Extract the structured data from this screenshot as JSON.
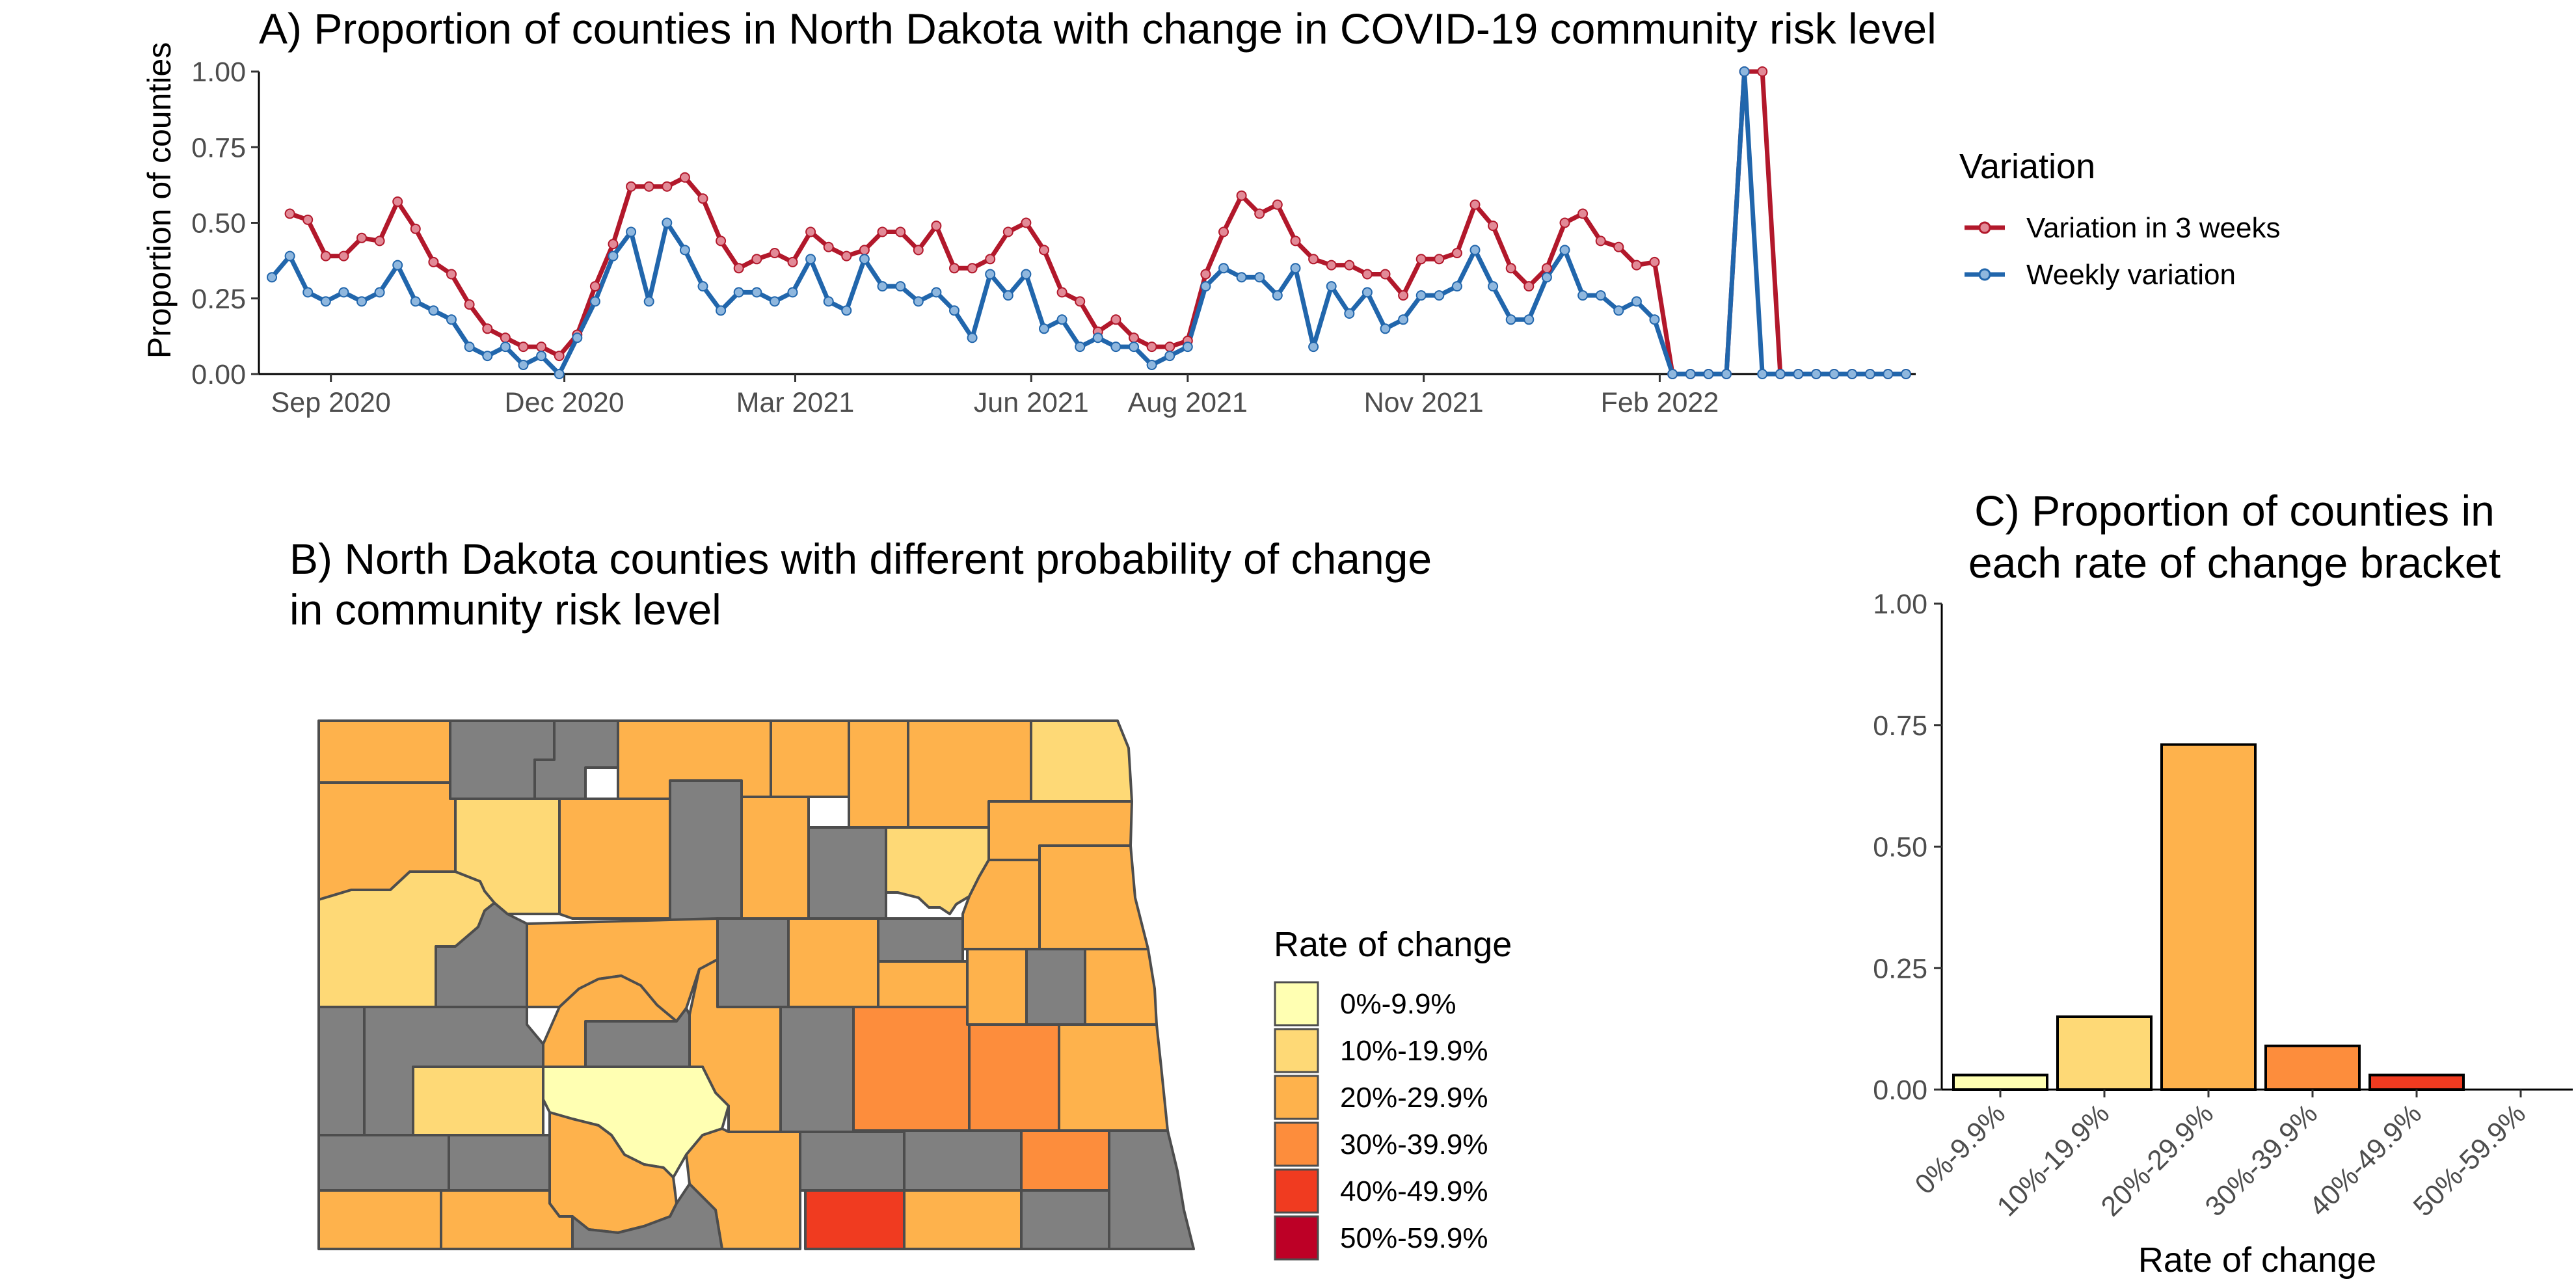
{
  "colors": {
    "red_series": "#b2182b",
    "red_marker": "#e28a97",
    "blue_series": "#2166ac",
    "blue_marker": "#8fb7de",
    "missing": "#808080",
    "county_border": "#4d4d4d",
    "brackets": [
      "#ffffb2",
      "#fed976",
      "#feb24c",
      "#fd8d3c",
      "#f03b20",
      "#bd0026"
    ]
  },
  "chart_data": [
    {
      "id": "A",
      "type": "line",
      "title": "A) Proportion of counties in North Dakota with change in COVID-19 community risk level",
      "xlabel": "",
      "ylabel": "Proportion of counties",
      "ylim": [
        0,
        1
      ],
      "yticks": [
        "0.00",
        "0.25",
        "0.50",
        "0.75",
        "1.00"
      ],
      "x_start": "2020-08-09",
      "x_step_days": 7,
      "xticks": [
        {
          "label": "Sep 2020",
          "date": "2020-09-01"
        },
        {
          "label": "Dec 2020",
          "date": "2020-12-01"
        },
        {
          "label": "Mar 2021",
          "date": "2021-03-01"
        },
        {
          "label": "Jun 2021",
          "date": "2021-06-01"
        },
        {
          "label": "Aug 2021",
          "date": "2021-08-01"
        },
        {
          "label": "Nov 2021",
          "date": "2021-11-01"
        },
        {
          "label": "Feb 2022",
          "date": "2022-02-01"
        }
      ],
      "legend_title": "Variation",
      "legend_position": "right",
      "grid": false,
      "series": [
        {
          "name": "Variation in 3 weeks",
          "color": "#b2182b",
          "values": [
            null,
            0.53,
            0.51,
            0.39,
            0.39,
            0.45,
            0.44,
            0.57,
            0.48,
            0.37,
            0.33,
            0.23,
            0.15,
            0.12,
            0.09,
            0.09,
            0.06,
            0.13,
            0.29,
            0.43,
            0.62,
            0.62,
            0.62,
            0.65,
            0.58,
            0.44,
            0.35,
            0.38,
            0.4,
            0.37,
            0.47,
            0.42,
            0.39,
            0.41,
            0.47,
            0.47,
            0.41,
            0.49,
            0.35,
            0.35,
            0.38,
            0.47,
            0.5,
            0.41,
            0.27,
            0.24,
            0.14,
            0.18,
            0.12,
            0.09,
            0.09,
            0.11,
            0.33,
            0.47,
            0.59,
            0.53,
            0.56,
            0.44,
            0.38,
            0.36,
            0.36,
            0.33,
            0.33,
            0.26,
            0.38,
            0.38,
            0.4,
            0.56,
            0.49,
            0.35,
            0.29,
            0.35,
            0.5,
            0.53,
            0.44,
            0.42,
            0.36,
            0.37,
            0.0,
            0.0,
            0.0,
            0.0,
            1.0,
            1.0,
            0.0,
            0.0,
            0.0,
            0.0,
            0.0,
            0.0,
            0.0,
            0.0
          ]
        },
        {
          "name": "Weekly variation",
          "color": "#2166ac",
          "values": [
            0.32,
            0.39,
            0.27,
            0.24,
            0.27,
            0.24,
            0.27,
            0.36,
            0.24,
            0.21,
            0.18,
            0.09,
            0.06,
            0.09,
            0.03,
            0.06,
            0.0,
            0.12,
            0.24,
            0.39,
            0.47,
            0.24,
            0.5,
            0.41,
            0.29,
            0.21,
            0.27,
            0.27,
            0.24,
            0.27,
            0.38,
            0.24,
            0.21,
            0.38,
            0.29,
            0.29,
            0.24,
            0.27,
            0.21,
            0.12,
            0.33,
            0.26,
            0.33,
            0.15,
            0.18,
            0.09,
            0.12,
            0.09,
            0.09,
            0.03,
            0.06,
            0.09,
            0.29,
            0.35,
            0.32,
            0.32,
            0.26,
            0.35,
            0.09,
            0.29,
            0.2,
            0.27,
            0.15,
            0.18,
            0.26,
            0.26,
            0.29,
            0.41,
            0.29,
            0.18,
            0.18,
            0.32,
            0.41,
            0.26,
            0.26,
            0.21,
            0.24,
            0.18,
            0.0,
            0.0,
            0.0,
            0.0,
            1.0,
            0.0,
            0.0,
            0.0,
            0.0,
            0.0,
            0.0,
            0.0,
            0.0,
            0.0
          ]
        }
      ]
    },
    {
      "id": "B",
      "type": "map",
      "title": "B)  North Dakota counties with different probability of change\nin community risk level",
      "legend_title": "Rate of change",
      "legend_position": "right",
      "legend_items": [
        "0%-9.9%",
        "10%-19.9%",
        "20%-29.9%",
        "30%-39.9%",
        "40%-49.9%",
        "50%-59.9%"
      ]
    },
    {
      "id": "C",
      "type": "bar",
      "title": "C) Proportion of counties in\neach rate of change bracket",
      "xlabel": "Rate of change",
      "ylabel": "",
      "ylim": [
        0,
        1
      ],
      "yticks": [
        "0.00",
        "0.25",
        "0.50",
        "0.75",
        "1.00"
      ],
      "categories": [
        "0%-9.9%",
        "10%-19.9%",
        "20%-29.9%",
        "30%-39.9%",
        "40%-49.9%",
        "50%-59.9%"
      ],
      "values": [
        0.03,
        0.15,
        0.71,
        0.09,
        0.03,
        0.0
      ],
      "grid": false
    }
  ]
}
